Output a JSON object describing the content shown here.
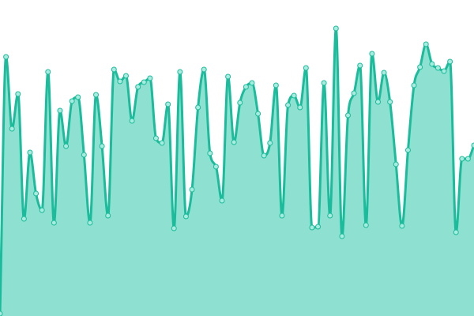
{
  "chart_data": {
    "type": "area",
    "title": "",
    "xlabel": "",
    "ylabel": "",
    "grid": false,
    "legend": "none",
    "ylim": [
      0,
      400
    ],
    "smooth": true,
    "colors": {
      "line": "#1abc9c",
      "fill": "#8ee0d0",
      "point_fill": "#a8ecdf",
      "point_stroke": "#1abc9c"
    },
    "values": [
      3,
      328,
      237,
      281,
      123,
      207,
      155,
      134,
      309,
      118,
      260,
      215,
      272,
      277,
      204,
      118,
      280,
      215,
      127,
      312,
      297,
      304,
      247,
      290,
      296,
      301,
      225,
      219,
      268,
      111,
      309,
      126,
      160,
      264,
      312,
      206,
      189,
      146,
      303,
      220,
      270,
      290,
      295,
      256,
      203,
      219,
      292,
      127,
      267,
      279,
      264,
      314,
      112,
      113,
      295,
      127,
      364,
      101,
      254,
      282,
      317,
      115,
      332,
      271,
      308,
      271,
      192,
      114,
      210,
      292,
      315,
      344,
      319,
      314,
      310,
      322,
      106,
      199,
      199,
      216
    ]
  }
}
